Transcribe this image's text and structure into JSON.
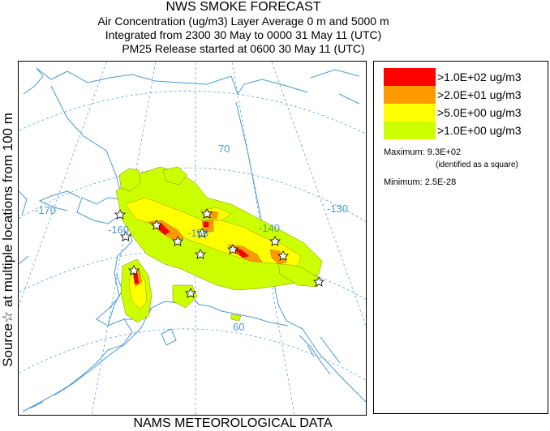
{
  "title": {
    "main": "NWS SMOKE FORECAST",
    "line2": "Air Concentration (ug/m3) Layer Average    0 m and  5000 m",
    "line3": "Integrated from 2300 30 May to 0000 31 May 11 (UTC)",
    "line4": "PM25 Release started at 0600 30 May 11 (UTC)"
  },
  "side_label": "Source☆ at multiple locations   from   100 m",
  "bottom_label": "NAMS METEOROLOGICAL DATA",
  "map": {
    "grid_labels": {
      "lon_170": "-170",
      "lon_160": "-160",
      "lon_150": "-150",
      "lon_140": "-140",
      "lon_130": "-130",
      "lat_70": "70",
      "lat_60": "60"
    },
    "colors": {
      "coast": "#4a9ad4",
      "grid": "#4a9ad4",
      "level1": "#ccff00",
      "level2": "#ffff00",
      "level3": "#ff9900",
      "level4": "#ff0000"
    }
  },
  "legend": {
    "items": [
      {
        "label": ">1.0E+02 ug/m3",
        "color": "#ff0000"
      },
      {
        "label": ">2.0E+01 ug/m3",
        "color": "#ff9900"
      },
      {
        "label": ">5.0E+00 ug/m3",
        "color": "#ffff00"
      },
      {
        "label": ">1.0E+00 ug/m3",
        "color": "#ccff00"
      }
    ],
    "maximum": "Maximum: 9.3E+02",
    "maximum_note": "(identified as a square)",
    "minimum": "Minimum: 2.5E-28"
  }
}
